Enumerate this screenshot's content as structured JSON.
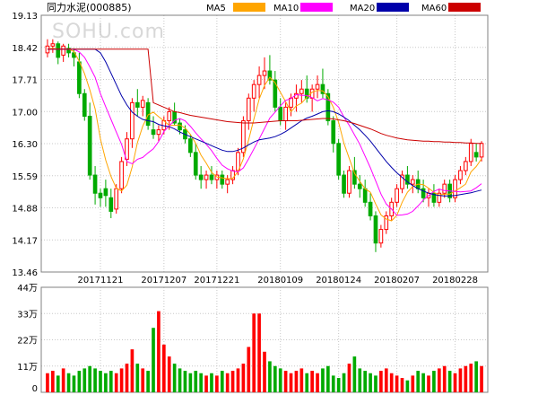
{
  "header": {
    "title": "同力水泥(000885)",
    "watermark": "SOHU.com"
  },
  "chart_data": [
    {
      "type": "candlestick",
      "title": "同力水泥(000885)",
      "ylim": [
        13.46,
        19.13
      ],
      "y_ticks": [
        "19.13",
        "18.42",
        "17.71",
        "17.00",
        "16.30",
        "15.59",
        "14.88",
        "14.17",
        "13.46"
      ],
      "x_ticks": [
        {
          "label": "20171121",
          "index": 10
        },
        {
          "label": "20171207",
          "index": 22
        },
        {
          "label": "20171221",
          "index": 32
        },
        {
          "label": "20180109",
          "index": 44
        },
        {
          "label": "20180124",
          "index": 55
        },
        {
          "label": "20180207",
          "index": 66
        },
        {
          "label": "20180228",
          "index": 77
        }
      ],
      "up_color": "#ff0000",
      "down_color": "#00aa00",
      "ohlc": [
        [
          18.3,
          18.6,
          18.2,
          18.45
        ],
        [
          18.45,
          18.6,
          18.3,
          18.5
        ],
        [
          18.5,
          18.55,
          18.05,
          18.2
        ],
        [
          18.25,
          18.5,
          18.1,
          18.45
        ],
        [
          18.4,
          18.5,
          18.2,
          18.3
        ],
        [
          18.3,
          18.4,
          18.0,
          18.2
        ],
        [
          18.1,
          18.3,
          17.3,
          17.4
        ],
        [
          17.4,
          17.5,
          16.8,
          16.9
        ],
        [
          16.9,
          17.2,
          15.5,
          15.6
        ],
        [
          15.6,
          15.8,
          14.95,
          15.2
        ],
        [
          15.2,
          15.3,
          14.9,
          15.1
        ],
        [
          15.3,
          15.5,
          14.9,
          15.15
        ],
        [
          15.1,
          15.3,
          14.65,
          14.8
        ],
        [
          14.85,
          15.4,
          14.75,
          15.3
        ],
        [
          15.3,
          16.0,
          15.2,
          15.9
        ],
        [
          15.95,
          16.55,
          15.8,
          16.4
        ],
        [
          16.4,
          17.3,
          16.2,
          17.2
        ],
        [
          17.2,
          17.5,
          16.9,
          17.1
        ],
        [
          17.1,
          17.35,
          16.9,
          17.25
        ],
        [
          17.2,
          17.3,
          16.6,
          16.7
        ],
        [
          16.6,
          16.9,
          16.4,
          16.5
        ],
        [
          16.5,
          16.7,
          16.35,
          16.6
        ],
        [
          16.6,
          16.9,
          16.5,
          16.8
        ],
        [
          16.8,
          17.1,
          16.6,
          17.0
        ],
        [
          17.0,
          17.2,
          16.7,
          16.75
        ],
        [
          16.75,
          16.85,
          16.5,
          16.6
        ],
        [
          16.6,
          16.7,
          16.3,
          16.4
        ],
        [
          16.4,
          16.5,
          16.0,
          16.1
        ],
        [
          16.1,
          16.3,
          15.5,
          15.6
        ],
        [
          15.6,
          15.8,
          15.3,
          15.5
        ],
        [
          15.5,
          15.7,
          15.3,
          15.6
        ],
        [
          15.6,
          15.8,
          15.4,
          15.5
        ],
        [
          15.5,
          15.7,
          15.3,
          15.6
        ],
        [
          15.6,
          15.7,
          15.3,
          15.4
        ],
        [
          15.4,
          15.6,
          15.2,
          15.5
        ],
        [
          15.5,
          15.8,
          15.4,
          15.7
        ],
        [
          15.7,
          16.2,
          15.6,
          16.1
        ],
        [
          16.1,
          16.9,
          16.0,
          16.8
        ],
        [
          16.8,
          17.4,
          16.6,
          17.3
        ],
        [
          17.3,
          17.7,
          17.0,
          17.6
        ],
        [
          17.6,
          18.0,
          17.3,
          17.8
        ],
        [
          17.8,
          18.2,
          17.5,
          17.9
        ],
        [
          17.9,
          18.25,
          17.6,
          17.7
        ],
        [
          17.7,
          17.9,
          17.0,
          17.1
        ],
        [
          17.1,
          17.3,
          16.7,
          16.8
        ],
        [
          16.8,
          17.2,
          16.6,
          17.1
        ],
        [
          17.1,
          17.4,
          16.9,
          17.3
        ],
        [
          17.3,
          17.6,
          17.0,
          17.4
        ],
        [
          17.4,
          17.7,
          17.2,
          17.5
        ],
        [
          17.5,
          17.8,
          17.2,
          17.3
        ],
        [
          17.3,
          17.6,
          17.0,
          17.5
        ],
        [
          17.5,
          17.8,
          17.3,
          17.6
        ],
        [
          17.6,
          17.95,
          17.3,
          17.4
        ],
        [
          17.4,
          17.5,
          16.7,
          16.8
        ],
        [
          16.8,
          16.9,
          16.1,
          16.3
        ],
        [
          16.3,
          16.4,
          15.5,
          15.6
        ],
        [
          15.6,
          15.7,
          15.1,
          15.2
        ],
        [
          15.2,
          15.8,
          15.1,
          15.7
        ],
        [
          15.7,
          16.0,
          15.3,
          15.4
        ],
        [
          15.4,
          15.6,
          15.1,
          15.3
        ],
        [
          15.3,
          15.5,
          14.9,
          15.0
        ],
        [
          15.0,
          15.2,
          14.6,
          14.7
        ],
        [
          14.7,
          14.8,
          13.9,
          14.1
        ],
        [
          14.1,
          14.5,
          14.0,
          14.4
        ],
        [
          14.4,
          14.8,
          14.3,
          14.7
        ],
        [
          14.7,
          15.1,
          14.6,
          15.0
        ],
        [
          15.0,
          15.4,
          14.9,
          15.3
        ],
        [
          15.3,
          15.7,
          15.2,
          15.6
        ],
        [
          15.6,
          15.8,
          15.3,
          15.4
        ],
        [
          15.4,
          15.6,
          15.2,
          15.5
        ],
        [
          15.5,
          15.7,
          15.2,
          15.3
        ],
        [
          15.3,
          15.5,
          15.0,
          15.1
        ],
        [
          15.1,
          15.3,
          14.9,
          15.2
        ],
        [
          15.2,
          15.4,
          14.9,
          15.0
        ],
        [
          15.0,
          15.3,
          14.9,
          15.2
        ],
        [
          15.2,
          15.5,
          15.1,
          15.4
        ],
        [
          15.4,
          15.5,
          15.0,
          15.1
        ],
        [
          15.1,
          15.6,
          15.0,
          15.5
        ],
        [
          15.5,
          15.8,
          15.4,
          15.7
        ],
        [
          15.7,
          16.0,
          15.6,
          15.9
        ],
        [
          15.9,
          16.4,
          15.8,
          16.3
        ],
        [
          16.1,
          16.3,
          15.9,
          16.0
        ],
        [
          16.0,
          16.35,
          15.9,
          16.3
        ]
      ],
      "volume": {
        "ylim": [
          0,
          44
        ],
        "y_ticks": [
          "44万",
          "33万",
          "22万",
          "11万",
          "0"
        ],
        "values": [
          8,
          9,
          7,
          10,
          8,
          7,
          9,
          10,
          11,
          10,
          9,
          8,
          9,
          8,
          10,
          12,
          18,
          12,
          10,
          9,
          27,
          34,
          20,
          15,
          12,
          10,
          9,
          8,
          9,
          8,
          7,
          8,
          7,
          9,
          8,
          9,
          10,
          12,
          19,
          33,
          33,
          17,
          13,
          11,
          10,
          9,
          8,
          9,
          10,
          8,
          9,
          8,
          10,
          11,
          7,
          6,
          8,
          12,
          15,
          10,
          9,
          8,
          7,
          9,
          10,
          8,
          7,
          6,
          5,
          7,
          9,
          8,
          7,
          9,
          10,
          11,
          9,
          8,
          10,
          11,
          12,
          13,
          11
        ]
      },
      "ma": [
        {
          "name": "MA5",
          "color": "#ffa500",
          "values": [
            18.38,
            18.4,
            18.38,
            18.38,
            18.38,
            18.33,
            18.11,
            17.84,
            17.48,
            17.06,
            16.4,
            15.93,
            15.57,
            15.31,
            15.25,
            15.38,
            15.78,
            16.32,
            16.68,
            16.93,
            16.99,
            16.89,
            16.8,
            16.7,
            16.7,
            16.71,
            16.64,
            16.5,
            16.3,
            16.04,
            15.86,
            15.66,
            15.56,
            15.54,
            15.52,
            15.53,
            15.68,
            15.96,
            16.38,
            16.84,
            17.28,
            17.58,
            17.76,
            17.64,
            17.43,
            17.22,
            17.0,
            17.13,
            17.19,
            17.32,
            17.43,
            17.47,
            17.46,
            17.33,
            17.1,
            16.76,
            16.3,
            15.97,
            15.64,
            15.46,
            15.3,
            15.22,
            14.96,
            14.72,
            14.63,
            14.59,
            14.71,
            15.0,
            15.22,
            15.35,
            15.4,
            15.39,
            15.31,
            15.22,
            15.16,
            15.18,
            15.18,
            15.25,
            15.32,
            15.4,
            15.67,
            15.79,
            15.96
          ]
        },
        {
          "name": "MA10",
          "color": "#ff00ff",
          "values": [
            18.38,
            18.38,
            18.38,
            18.38,
            18.38,
            18.38,
            18.32,
            18.2,
            17.99,
            17.76,
            17.4,
            17.11,
            16.83,
            16.55,
            16.28,
            15.9,
            15.85,
            15.95,
            15.99,
            16.09,
            16.18,
            16.34,
            16.56,
            16.69,
            16.81,
            16.85,
            16.8,
            16.68,
            16.53,
            16.4,
            16.28,
            16.14,
            15.97,
            15.82,
            15.74,
            15.69,
            15.67,
            15.76,
            15.96,
            16.18,
            16.4,
            16.63,
            16.86,
            16.99,
            17.13,
            17.25,
            17.29,
            17.38,
            17.36,
            17.36,
            17.31,
            17.24,
            17.29,
            17.26,
            17.21,
            17.1,
            16.88,
            16.7,
            16.49,
            16.28,
            16.02,
            15.76,
            15.47,
            15.18,
            14.96,
            14.85,
            14.71,
            14.72,
            14.74,
            14.8,
            14.92,
            15.05,
            15.15,
            15.24,
            15.29,
            15.26,
            15.25,
            15.24,
            15.23,
            15.24,
            15.25,
            15.32,
            15.41
          ]
        },
        {
          "name": "MA20",
          "color": "#0000aa",
          "values": [
            18.38,
            18.38,
            18.38,
            18.38,
            18.38,
            18.38,
            18.38,
            18.38,
            18.38,
            18.38,
            18.3,
            18.1,
            17.85,
            17.6,
            17.35,
            17.15,
            16.99,
            16.9,
            16.83,
            16.8,
            16.78,
            16.72,
            16.69,
            16.67,
            16.62,
            16.55,
            16.5,
            16.45,
            16.4,
            16.35,
            16.3,
            16.25,
            16.2,
            16.15,
            16.12,
            16.12,
            16.15,
            16.2,
            16.27,
            16.33,
            16.38,
            16.4,
            16.42,
            16.45,
            16.5,
            16.56,
            16.64,
            16.72,
            16.8,
            16.86,
            16.9,
            16.95,
            17.0,
            17.02,
            17.0,
            16.95,
            16.88,
            16.8,
            16.7,
            16.6,
            16.48,
            16.35,
            16.2,
            16.05,
            15.9,
            15.77,
            15.65,
            15.55,
            15.45,
            15.37,
            15.3,
            15.25,
            15.2,
            15.17,
            15.15,
            15.14,
            15.14,
            15.15,
            15.17,
            15.19,
            15.21,
            15.24,
            15.27
          ]
        },
        {
          "name": "MA60",
          "color": "#cc0000",
          "values": [
            18.38,
            18.38,
            18.38,
            18.38,
            18.38,
            18.38,
            18.38,
            18.38,
            18.38,
            18.38,
            18.38,
            18.38,
            18.38,
            18.38,
            18.38,
            18.38,
            18.38,
            18.38,
            18.38,
            18.38,
            17.2,
            17.15,
            17.1,
            17.05,
            17.0,
            16.98,
            16.95,
            16.92,
            16.9,
            16.88,
            16.86,
            16.84,
            16.82,
            16.8,
            16.78,
            16.77,
            16.76,
            16.75,
            16.75,
            16.75,
            16.76,
            16.77,
            16.78,
            16.79,
            16.8,
            16.8,
            16.8,
            16.8,
            16.81,
            16.82,
            16.83,
            16.84,
            16.85,
            16.85,
            16.84,
            16.82,
            16.8,
            16.77,
            16.74,
            16.7,
            16.66,
            16.62,
            16.57,
            16.52,
            16.48,
            16.45,
            16.42,
            16.4,
            16.38,
            16.37,
            16.36,
            16.35,
            16.35,
            16.34,
            16.34,
            16.33,
            16.33,
            16.32,
            16.32,
            16.31,
            16.31,
            16.3,
            16.3
          ]
        }
      ]
    }
  ]
}
